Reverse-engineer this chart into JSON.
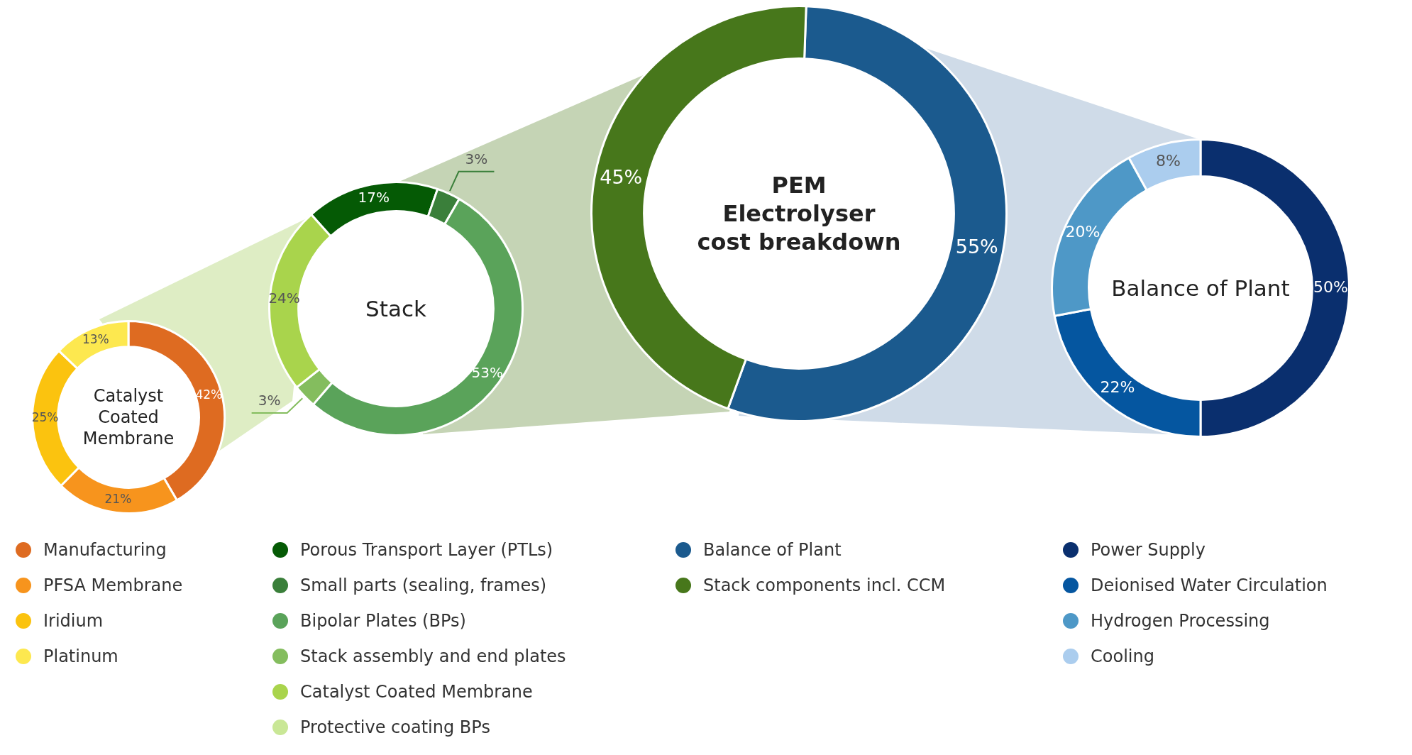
{
  "chart_data": [
    {
      "type": "donut",
      "title": "Catalyst Coated Membrane",
      "categories": [
        "Manufacturing",
        "PFSA Membrane",
        "Iridium",
        "Platinum"
      ],
      "values": [
        42,
        21,
        25,
        13
      ],
      "value_labels": [
        "42%",
        "21%",
        "25%",
        "13%"
      ],
      "colors": [
        "#de6b21",
        "#f7941d",
        "#fbc30f",
        "#fde84f"
      ],
      "legend": "bottom"
    },
    {
      "type": "donut",
      "title": "Stack",
      "categories": [
        "Porous Transport Layer (PTLs)",
        "Small parts (sealing, frames)",
        "Bipolar Plates (BPs)",
        "Stack assembly and end plates",
        "Catalyst Coated Membrane",
        "Protective coating BPs"
      ],
      "values": [
        17,
        3,
        53,
        3,
        24,
        null
      ],
      "value_labels": [
        "17%",
        "3%",
        "53%",
        "3%",
        "24%",
        null
      ],
      "colors": [
        "#055a05",
        "#3a7f3a",
        "#5aa35a",
        "#84bd5e",
        "#a9d44c",
        "#c9e796"
      ],
      "legend": "bottom"
    },
    {
      "type": "donut",
      "title": "PEM Electrolyser cost breakdown",
      "categories": [
        "Balance of Plant",
        "Stack components incl. CCM"
      ],
      "values": [
        55,
        45
      ],
      "value_labels": [
        "55%",
        "45%"
      ],
      "colors": [
        "#1b5a8e",
        "#47771b"
      ],
      "legend": "bottom"
    },
    {
      "type": "donut",
      "title": "Balance of Plant",
      "categories": [
        "Power Supply",
        "Deionised Water Circulation",
        "Hydrogen Processing",
        "Cooling"
      ],
      "values": [
        50,
        22,
        20,
        8
      ],
      "value_labels": [
        "50%",
        "22%",
        "20%",
        "8%"
      ],
      "colors": [
        "#0a2f6e",
        "#0556a0",
        "#4e98c7",
        "#abcdee"
      ],
      "legend": "bottom"
    }
  ]
}
